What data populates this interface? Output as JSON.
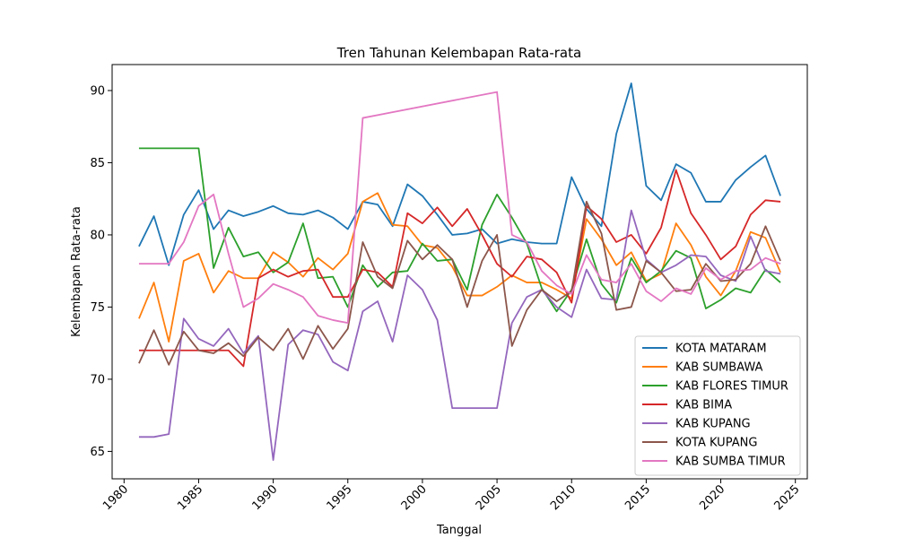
{
  "chart_data": {
    "type": "line",
    "title": "Tren Tahunan Kelembapan Rata-rata",
    "xlabel": "Tanggal",
    "ylabel": "Kelembapan Rata-rata",
    "xlim": [
      1979.2,
      2025.8
    ],
    "ylim": [
      63.1,
      91.8
    ],
    "xticks": [
      1980,
      1985,
      1990,
      1995,
      2000,
      2005,
      2010,
      2015,
      2020,
      2025
    ],
    "yticks": [
      65,
      70,
      75,
      80,
      85,
      90
    ],
    "legend_position": "lower-right",
    "grid": false,
    "x": [
      1981,
      1982,
      1983,
      1984,
      1985,
      1986,
      1987,
      1988,
      1989,
      1990,
      1991,
      1992,
      1993,
      1994,
      1995,
      1996,
      1997,
      1998,
      1999,
      2000,
      2001,
      2002,
      2003,
      2004,
      2005,
      2006,
      2007,
      2008,
      2009,
      2010,
      2011,
      2012,
      2013,
      2014,
      2015,
      2016,
      2017,
      2018,
      2019,
      2020,
      2021,
      2022,
      2023,
      2024
    ],
    "series": [
      {
        "name": "KOTA MATARAM",
        "color": "#1f77b4",
        "values": [
          79.2,
          81.3,
          77.9,
          81.4,
          83.1,
          80.4,
          81.7,
          81.3,
          81.6,
          82.0,
          81.5,
          81.4,
          81.7,
          81.2,
          80.4,
          82.3,
          82.1,
          80.6,
          83.5,
          82.7,
          81.4,
          80.0,
          80.1,
          80.4,
          79.4,
          79.7,
          79.5,
          79.4,
          79.4,
          84.0,
          81.8,
          80.6,
          87.0,
          90.5,
          83.4,
          82.4,
          84.9,
          84.3,
          82.3,
          82.3,
          83.8,
          84.7,
          85.5,
          82.7
        ]
      },
      {
        "name": "KAB SUMBAWA",
        "color": "#ff7f0e",
        "values": [
          74.2,
          76.7,
          72.6,
          78.2,
          78.7,
          76.0,
          77.5,
          77.0,
          77.0,
          78.8,
          78.1,
          77.1,
          78.4,
          77.6,
          78.7,
          82.3,
          82.9,
          80.7,
          80.6,
          79.3,
          79.1,
          77.8,
          75.8,
          75.8,
          76.4,
          77.2,
          76.7,
          76.7,
          76.2,
          75.6,
          81.1,
          79.7,
          77.9,
          78.8,
          76.8,
          77.3,
          80.8,
          79.3,
          77.1,
          75.8,
          77.5,
          80.2,
          79.8,
          77.4
        ]
      },
      {
        "name": "KAB FLORES TIMUR",
        "color": "#2ca02c",
        "values": [
          86.0,
          86.0,
          86.0,
          86.0,
          86.0,
          77.7,
          80.5,
          78.5,
          78.8,
          77.4,
          78.1,
          80.8,
          77.0,
          77.1,
          75.0,
          77.9,
          76.4,
          77.4,
          77.5,
          79.4,
          78.2,
          78.3,
          76.2,
          80.7,
          82.8,
          81.2,
          79.4,
          76.3,
          74.7,
          76.2,
          79.7,
          76.6,
          75.3,
          78.4,
          76.7,
          77.5,
          78.9,
          78.4,
          74.9,
          75.5,
          76.3,
          76.0,
          77.6,
          76.7
        ]
      },
      {
        "name": "KAB BIMA",
        "color": "#d62728",
        "values": [
          72.0,
          72.0,
          72.0,
          72.0,
          72.0,
          72.0,
          72.0,
          70.9,
          77.0,
          77.6,
          77.1,
          77.5,
          77.6,
          75.7,
          75.7,
          77.6,
          77.4,
          76.4,
          81.5,
          80.8,
          81.9,
          80.6,
          81.8,
          80.0,
          78.0,
          77.1,
          78.5,
          78.3,
          77.4,
          75.3,
          82.0,
          81.1,
          79.5,
          80.0,
          78.7,
          80.5,
          84.5,
          81.5,
          80.0,
          78.3,
          79.2,
          81.4,
          82.4,
          82.3
        ]
      },
      {
        "name": "KAB KUPANG",
        "color": "#9467bd",
        "values": [
          66.0,
          66.0,
          66.2,
          74.2,
          72.8,
          72.3,
          73.5,
          71.8,
          73.0,
          64.4,
          72.4,
          73.4,
          73.1,
          71.2,
          70.6,
          74.7,
          75.4,
          72.6,
          77.2,
          76.2,
          74.1,
          68.0,
          68.0,
          68.0,
          68.0,
          73.9,
          75.7,
          76.2,
          75.0,
          74.3,
          77.6,
          75.6,
          75.5,
          81.7,
          78.3,
          77.4,
          77.9,
          78.6,
          78.5,
          77.2,
          76.8,
          79.9,
          77.5,
          77.3
        ]
      },
      {
        "name": "KOTA KUPANG",
        "color": "#8c564b",
        "values": [
          71.1,
          73.4,
          71.0,
          73.3,
          72.0,
          71.8,
          72.5,
          71.6,
          72.9,
          72.0,
          73.5,
          71.4,
          73.7,
          72.1,
          73.5,
          79.5,
          77.1,
          76.3,
          79.6,
          78.3,
          79.3,
          78.3,
          75.0,
          78.2,
          80.0,
          72.3,
          74.8,
          76.2,
          75.4,
          76.1,
          82.3,
          80.1,
          74.8,
          75.0,
          78.2,
          77.4,
          76.1,
          76.2,
          78.0,
          76.8,
          76.9,
          78.0,
          80.6,
          78.2
        ]
      },
      {
        "name": "KAB SUMBA TIMUR",
        "color": "#e377c2",
        "values": [
          78.0,
          78.0,
          78.0,
          79.5,
          82.0,
          82.8,
          78.7,
          75.0,
          75.6,
          76.6,
          76.2,
          75.7,
          74.4,
          74.1,
          73.9,
          88.1,
          null,
          null,
          null,
          null,
          null,
          null,
          null,
          null,
          89.9,
          80.0,
          79.5,
          77.5,
          76.5,
          75.9,
          78.6,
          76.9,
          76.7,
          78.0,
          76.1,
          75.4,
          76.3,
          75.9,
          77.7,
          76.9,
          77.5,
          77.6,
          78.4,
          78.0
        ]
      }
    ]
  }
}
